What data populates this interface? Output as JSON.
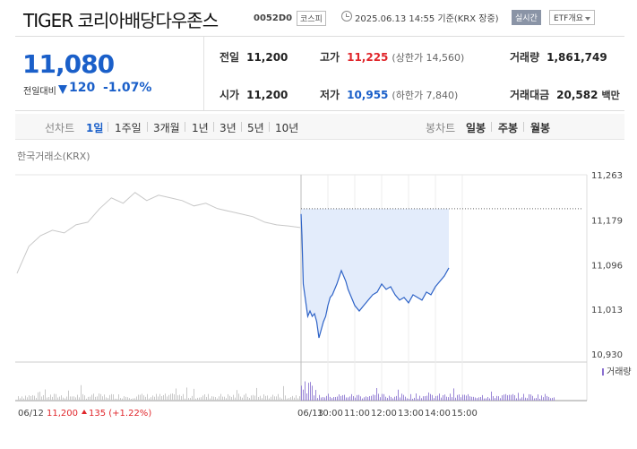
{
  "header": {
    "title": "TIGER 코리아배당다우존스",
    "code": "0052D0",
    "market": "코스피",
    "datetime": "2025.06.13 14:55 기준(KRX 장중)",
    "live_label": "실시간",
    "etf_label": "ETF개요"
  },
  "price": {
    "current": "11,080",
    "change_label": "전일대비",
    "change": "120",
    "rate": "-1.07%",
    "direction": "down"
  },
  "stats": {
    "prev_label": "전일",
    "prev": "11,200",
    "open_label": "시가",
    "open": "11,200",
    "high_label": "고가",
    "high": "11,225",
    "high_sub": "(상한가 14,560)",
    "low_label": "저가",
    "low": "10,955",
    "low_sub": "(하한가 7,840)",
    "volume_label": "거래량",
    "volume": "1,861,749",
    "amount_label": "거래대금",
    "amount": "20,582",
    "amount_unit": "백만"
  },
  "tabs": {
    "line_label": "선차트",
    "periods": [
      "1일",
      "1주일",
      "3개월",
      "1년",
      "3년",
      "5년",
      "10년"
    ],
    "selected": "1일",
    "candle_label": "봉차트",
    "candles": [
      "일봉",
      "주봉",
      "월봉"
    ]
  },
  "chart_meta": {
    "source": "한국거래소(KRX)",
    "volume_legend": "거래량",
    "prev_summary_date": "06/12",
    "prev_summary_price": "11,200",
    "prev_summary_change": "135 (+1.22%)"
  },
  "chart_data": {
    "type": "line",
    "ylim": [
      10930,
      11263
    ],
    "yticks": [
      "11,263",
      "11,179",
      "11,096",
      "11,013",
      "10,930"
    ],
    "ytick_values": [
      11263,
      11179,
      11096,
      11013,
      10930
    ],
    "xticks": [
      "06/13",
      "10:00",
      "11:00",
      "12:00",
      "13:00",
      "14:00",
      "15:00"
    ],
    "xtick_minutes": [
      0,
      60,
      120,
      180,
      240,
      300,
      360
    ],
    "reference_price": 11200,
    "series": [
      {
        "x_minutes": [
          -360,
          -345,
          -330,
          -315,
          -300,
          -285,
          -270,
          -255,
          -240,
          -225,
          -210,
          -195,
          -180,
          -165,
          -150,
          -135,
          -120,
          -105,
          -90,
          -75,
          -60,
          -45,
          -30,
          -15,
          0
        ],
        "values": [
          11080,
          11130,
          11150,
          11160,
          11155,
          11170,
          11175,
          11200,
          11220,
          11210,
          11230,
          11215,
          11225,
          11220,
          11215,
          11205,
          11210,
          11200,
          11195,
          11190,
          11185,
          11175,
          11170,
          11168,
          11165
        ]
      },
      {
        "x_minutes": [
          0,
          2,
          5,
          10,
          15,
          20,
          25,
          30,
          35,
          40,
          45,
          50,
          55,
          60,
          65,
          70,
          80,
          90,
          100,
          105,
          110,
          120,
          130,
          140,
          150,
          160,
          170,
          180,
          190,
          200,
          210,
          220,
          230,
          240,
          250,
          260,
          270,
          280,
          290,
          300,
          310,
          320,
          330
        ],
        "values": [
          11190,
          11150,
          11060,
          11030,
          11000,
          11010,
          11000,
          11005,
          10990,
          10960,
          10975,
          10990,
          11000,
          11020,
          11035,
          11040,
          11060,
          11085,
          11065,
          11050,
          11040,
          11020,
          11010,
          11020,
          11030,
          11040,
          11045,
          11060,
          11050,
          11055,
          11040,
          11030,
          11035,
          11025,
          11040,
          11035,
          11030,
          11045,
          11040,
          11055,
          11065,
          11075,
          11090
        ]
      }
    ]
  }
}
